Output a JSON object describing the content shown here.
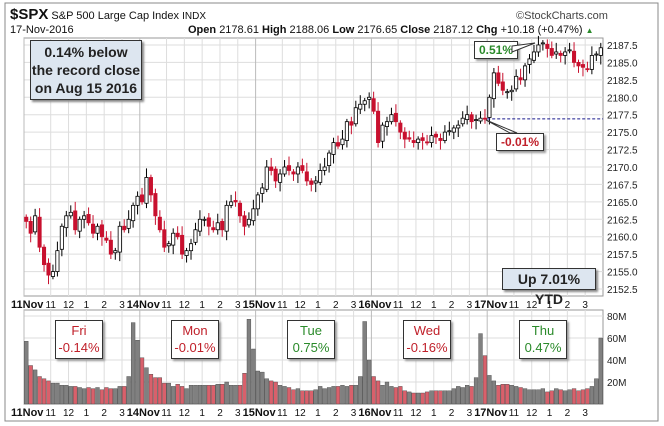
{
  "header": {
    "symbol": "$SPX",
    "name": "S&P 500 Large Cap Index",
    "exchange": "INDX",
    "copyright": "©StockCharts.com",
    "date": "17-Nov-2016",
    "open_label": "Open",
    "open": "2178.61",
    "high_label": "High",
    "high": "2188.06",
    "low_label": "Low",
    "low": "2176.65",
    "close_label": "Close",
    "close": "2187.12",
    "chg_label": "Chg",
    "chg": "+10.18 (+0.47%)",
    "chg_arrow": "▲"
  },
  "annotations": {
    "record_note": [
      "0.14% below",
      "the record close",
      "on Aug 15 2016"
    ],
    "ytd": "Up 7.01% YTD",
    "high_pct": "0.51%",
    "prev_close_pct": "-0.01%",
    "days": [
      {
        "day": "Fri",
        "pct": "-0.14%",
        "color": "#c0202a"
      },
      {
        "day": "Mon",
        "pct": "-0.01%",
        "color": "#c0202a"
      },
      {
        "day": "Tue",
        "pct": "0.75%",
        "color": "#2a8a2a"
      },
      {
        "day": "Wed",
        "pct": "-0.16%",
        "color": "#c0202a"
      },
      {
        "day": "Thu",
        "pct": "0.47%",
        "color": "#2a8a2a"
      }
    ]
  },
  "colors": {
    "up": "#ffffff",
    "down": "#c8102e",
    "vol_up": "#808080",
    "vol_down": "#d9606b",
    "grid": "#dddddd",
    "dash": "#1a1a8c"
  },
  "chart_data": {
    "type": "candlestick",
    "interval": "15-minute",
    "days": [
      "11Nov",
      "14Nov",
      "15Nov",
      "16Nov",
      "17Nov"
    ],
    "hour_ticks": [
      "11",
      "12",
      "1",
      "2",
      "3"
    ],
    "ylim": [
      2151.5,
      2188.5
    ],
    "yticks": [
      "2152.5",
      "2155.0",
      "2157.5",
      "2160.0",
      "2162.5",
      "2165.0",
      "2167.5",
      "2170.0",
      "2172.5",
      "2175.0",
      "2177.5",
      "2180.0",
      "2182.5",
      "2185.0",
      "2187.5"
    ],
    "prev_close_line": 2176.9,
    "close": [
      2162.2,
      2160.5,
      2163.0,
      2158.5,
      2156.0,
      2154.5,
      2155.0,
      2158.0,
      2161.5,
      2163.0,
      2163.5,
      2161.0,
      2162.5,
      2163.0,
      2162.0,
      2160.5,
      2161.5,
      2160.0,
      2159.5,
      2157.5,
      2158.0,
      2161.5,
      2161.0,
      2162.5,
      2164.5,
      2165.8,
      2165.0,
      2168.5,
      2166.0,
      2163.0,
      2161.0,
      2158.5,
      2159.0,
      2160.5,
      2160.0,
      2157.5,
      2158.0,
      2159.0,
      2161.0,
      2162.5,
      2162.5,
      2161.5,
      2161.0,
      2162.0,
      2161.0,
      2164.5,
      2165.0,
      2165.0,
      2163.0,
      2161.5,
      2162.5,
      2164.0,
      2166.0,
      2167.0,
      2170.0,
      2169.5,
      2168.0,
      2169.0,
      2170.0,
      2169.5,
      2169.0,
      2170.0,
      2169.5,
      2168.0,
      2167.5,
      2168.0,
      2169.5,
      2170.0,
      2172.0,
      2173.5,
      2173.0,
      2174.0,
      2176.5,
      2176.0,
      2178.5,
      2179.0,
      2179.5,
      2180.0,
      2178.0,
      2173.5,
      2176.0,
      2176.5,
      2177.5,
      2176.5,
      2175.0,
      2174.0,
      2174.0,
      2173.5,
      2174.0,
      2173.8,
      2173.5,
      2174.5,
      2174.3,
      2173.8,
      2175.0,
      2175.2,
      2175.6,
      2176.0,
      2177.0,
      2177.5,
      2176.5,
      2176.8,
      2177.0,
      2176.9,
      2180.0,
      2183.5,
      2182.0,
      2181.0,
      2180.8,
      2181.0,
      2183.0,
      2182.5,
      2184.5,
      2185.5,
      2186.5,
      2187.5,
      2187.8,
      2187.0,
      2186.0,
      2186.5,
      2186.0,
      2186.5,
      2186.8,
      2185.0,
      2184.5,
      2184.3,
      2184.0,
      2186.0,
      2186.2,
      2187.1
    ],
    "volume_axis": {
      "ticks": [
        "20M",
        "40M",
        "60M",
        "80M"
      ],
      "ylim": [
        0,
        80
      ]
    },
    "volume_millions": [
      57,
      35,
      31,
      25,
      23,
      21,
      19,
      19,
      17,
      17,
      16,
      16,
      15,
      14,
      15,
      14,
      15,
      13,
      15,
      14,
      14,
      16,
      16,
      25,
      74,
      58,
      42,
      33,
      27,
      24,
      24,
      19,
      19,
      16,
      18,
      16,
      14,
      17,
      17,
      17,
      17,
      17,
      17,
      18,
      18,
      20,
      17,
      17,
      17,
      28,
      77,
      50,
      30,
      29,
      23,
      21,
      20,
      17,
      16,
      15,
      13,
      14,
      12,
      12,
      12,
      13,
      16,
      14,
      15,
      16,
      16,
      17,
      16,
      17,
      17,
      25,
      75,
      40,
      25,
      21,
      17,
      20,
      16,
      15,
      16,
      12,
      11,
      10,
      10,
      10,
      11,
      12,
      12,
      12,
      12,
      12,
      14,
      16,
      15,
      17,
      16,
      24,
      64,
      44,
      26,
      21,
      17,
      18,
      18,
      17,
      16,
      15,
      14,
      13,
      13,
      13,
      14,
      11,
      12,
      14,
      13,
      12,
      13,
      14,
      12,
      13,
      14,
      16,
      23,
      60
    ]
  }
}
